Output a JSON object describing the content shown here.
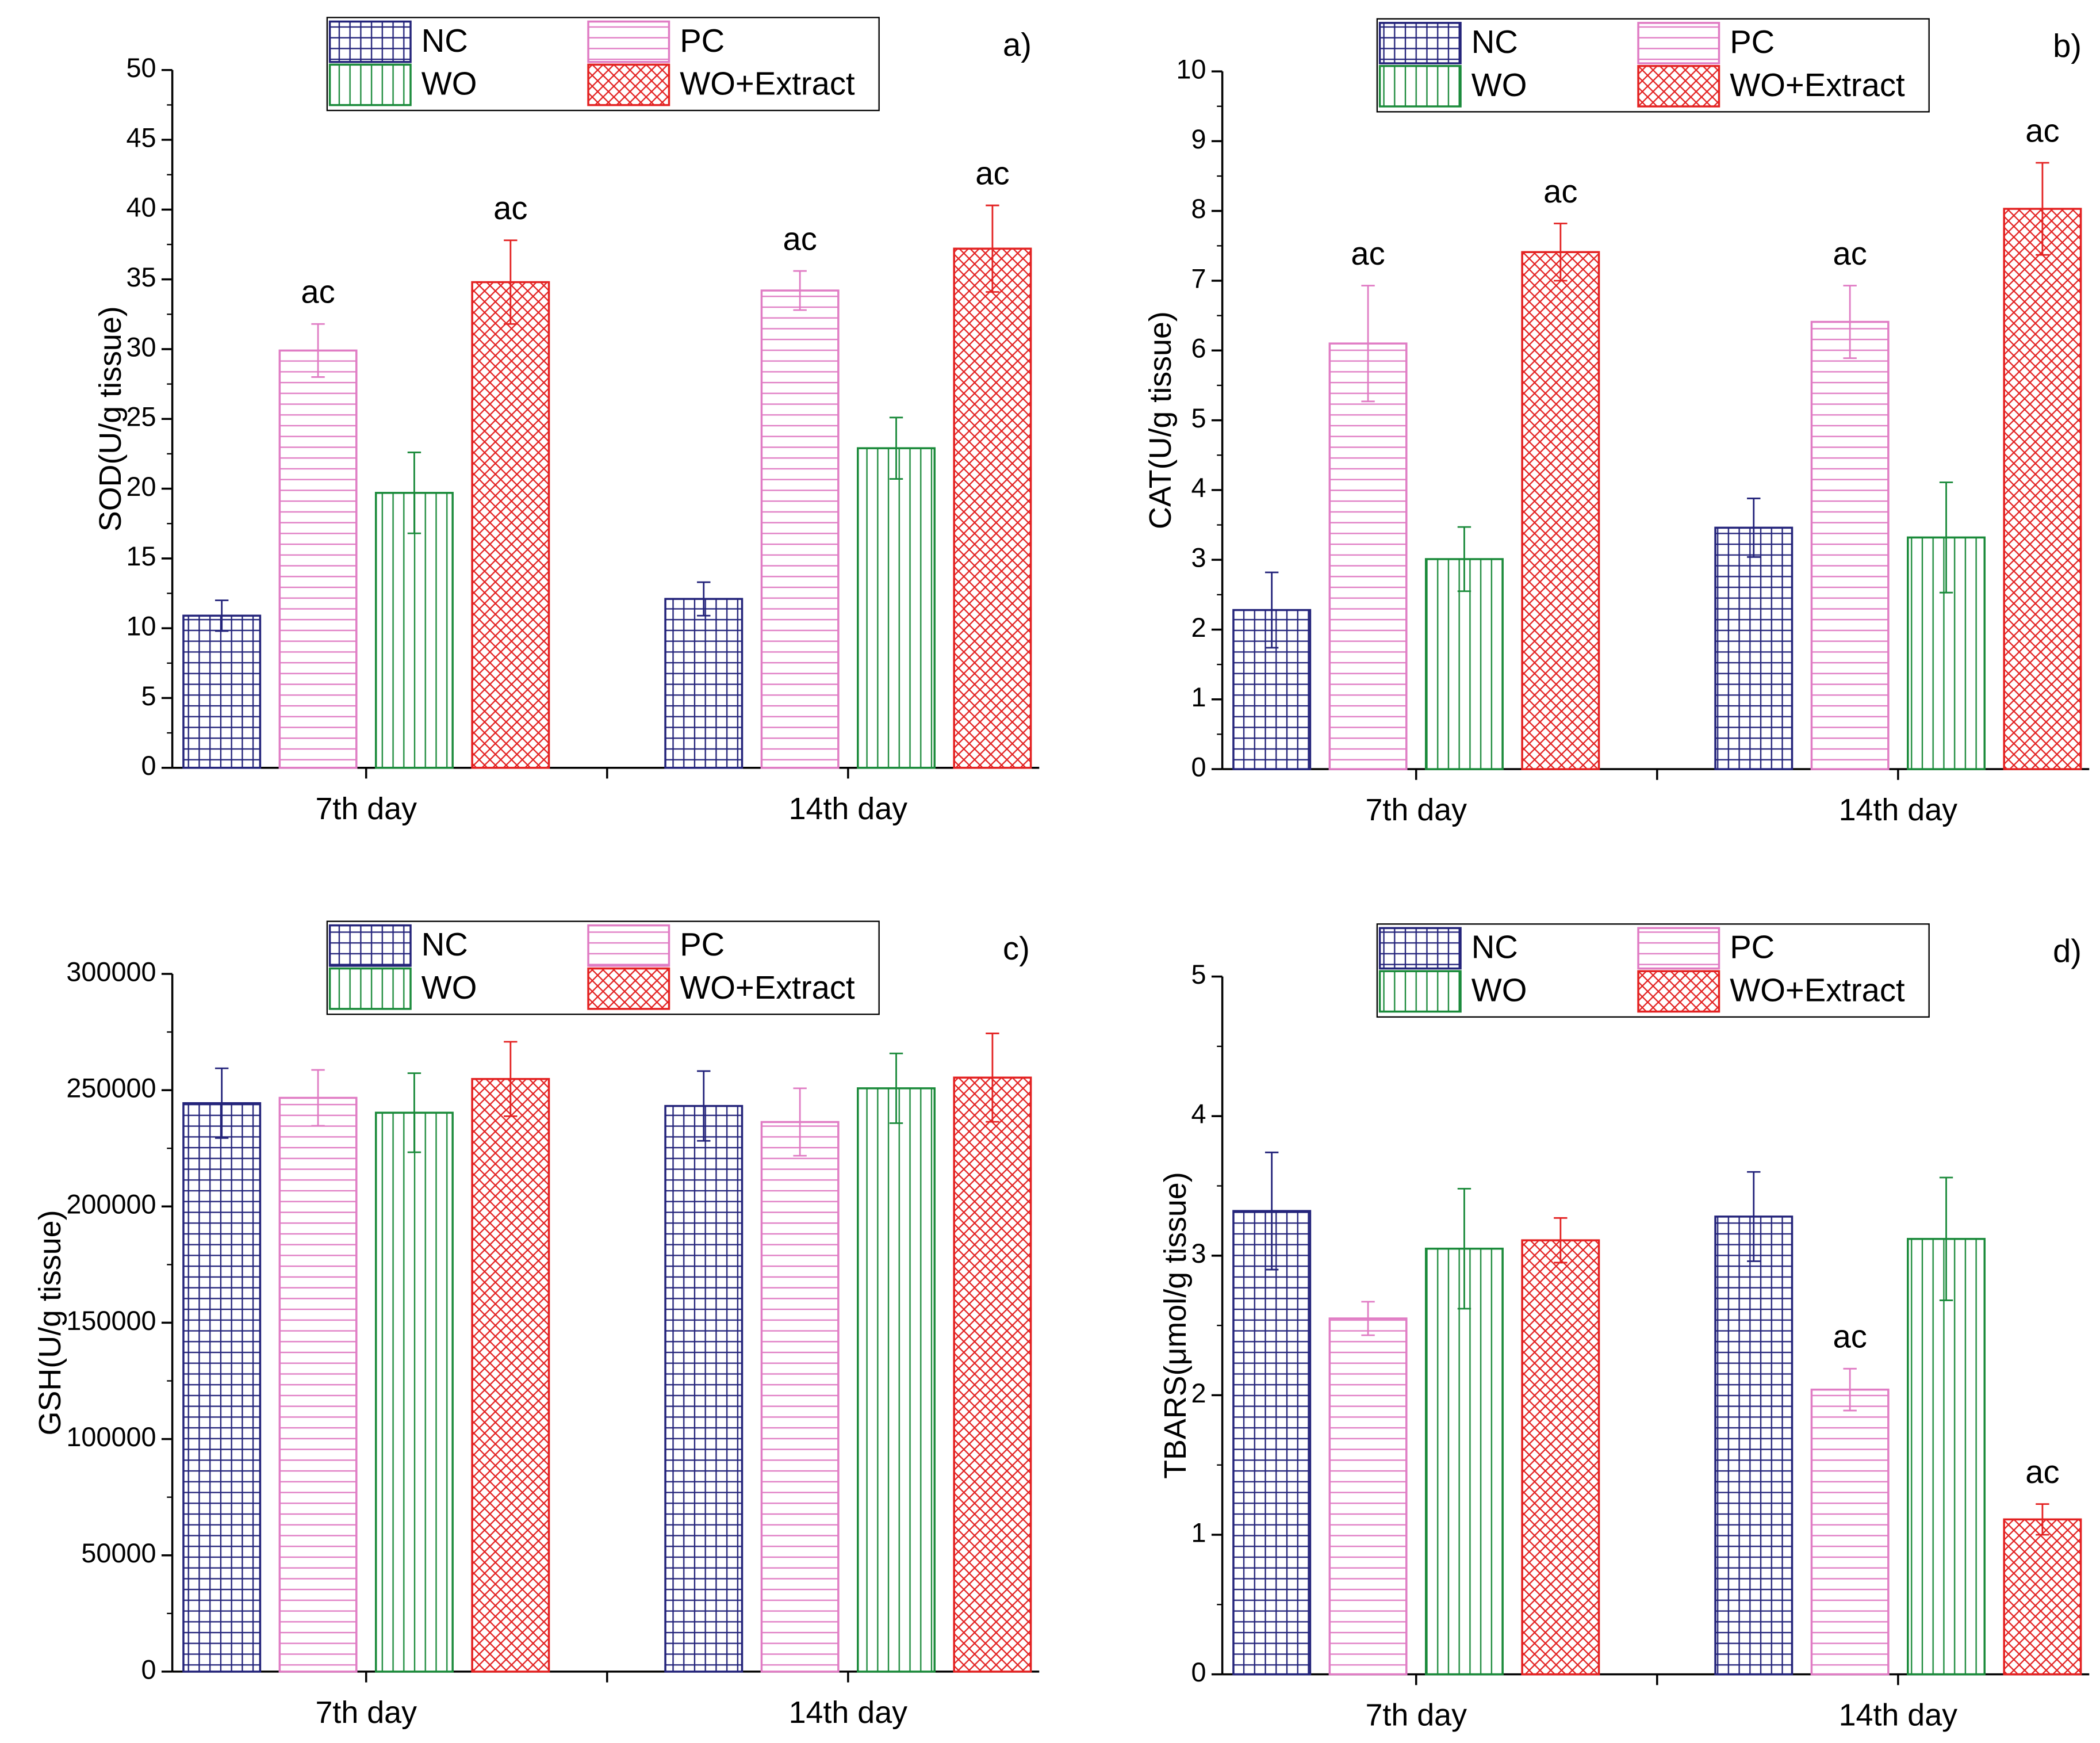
{
  "chart_data": [
    {
      "type": "bar",
      "panel": "a)",
      "ylabel": "SOD(U/g tissue)",
      "categories": [
        "7th day",
        "14th day"
      ],
      "ylim": [
        0,
        50
      ],
      "yticks": [
        0,
        5,
        10,
        15,
        20,
        25,
        30,
        35,
        40,
        45,
        50
      ],
      "series": [
        {
          "name": "NC",
          "color": "#23237a",
          "pattern": "grid",
          "values": [
            10.9,
            12.1
          ],
          "errors": [
            1.1,
            1.2
          ],
          "annotations": [
            null,
            null
          ]
        },
        {
          "name": "PC",
          "color": "#e07cc4",
          "pattern": "horizontal",
          "values": [
            29.9,
            34.2
          ],
          "errors": [
            1.9,
            1.4
          ],
          "annotations": [
            "ac",
            "ac"
          ]
        },
        {
          "name": "WO",
          "color": "#1a8a3a",
          "pattern": "vertical",
          "values": [
            19.7,
            22.9
          ],
          "errors": [
            2.9,
            2.2
          ],
          "annotations": [
            null,
            null
          ]
        },
        {
          "name": "WO+Extract",
          "color": "#e32222",
          "pattern": "crosshatch",
          "values": [
            34.8,
            37.2
          ],
          "errors": [
            3.0,
            3.1
          ],
          "annotations": [
            "ac",
            "ac"
          ]
        }
      ]
    },
    {
      "type": "bar",
      "panel": "b)",
      "ylabel": "CAT(U/g tissue)",
      "categories": [
        "7th day",
        "14th day"
      ],
      "ylim": [
        0,
        10
      ],
      "yticks": [
        0,
        1,
        2,
        3,
        4,
        5,
        6,
        7,
        8,
        9,
        10
      ],
      "series": [
        {
          "name": "NC",
          "color": "#23237a",
          "pattern": "grid",
          "values": [
            2.28,
            3.46
          ],
          "errors": [
            0.54,
            0.42
          ],
          "annotations": [
            null,
            null
          ]
        },
        {
          "name": "PC",
          "color": "#e07cc4",
          "pattern": "horizontal",
          "values": [
            6.1,
            6.41
          ],
          "errors": [
            0.83,
            0.52
          ],
          "annotations": [
            "ac",
            "ac"
          ]
        },
        {
          "name": "WO",
          "color": "#1a8a3a",
          "pattern": "vertical",
          "values": [
            3.01,
            3.32
          ],
          "errors": [
            0.46,
            0.79
          ],
          "annotations": [
            null,
            null
          ]
        },
        {
          "name": "WO+Extract",
          "color": "#e32222",
          "pattern": "crosshatch",
          "values": [
            7.41,
            8.03
          ],
          "errors": [
            0.41,
            0.66
          ],
          "annotations": [
            "ac",
            "ac"
          ]
        }
      ]
    },
    {
      "type": "bar",
      "panel": "c)",
      "ylabel": "GSH(U/g tissue)",
      "categories": [
        "7th day",
        "14th day"
      ],
      "ylim": [
        0,
        300000
      ],
      "yticks": [
        0,
        50000,
        100000,
        150000,
        200000,
        250000,
        300000
      ],
      "series": [
        {
          "name": "NC",
          "color": "#23237a",
          "pattern": "grid",
          "values": [
            244400,
            243200
          ],
          "errors": [
            15000,
            15000
          ],
          "annotations": [
            null,
            null
          ]
        },
        {
          "name": "PC",
          "color": "#e07cc4",
          "pattern": "horizontal",
          "values": [
            246700,
            236300
          ],
          "errors": [
            12000,
            14500
          ],
          "annotations": [
            null,
            null
          ]
        },
        {
          "name": "WO",
          "color": "#1a8a3a",
          "pattern": "vertical",
          "values": [
            240300,
            250800
          ],
          "errors": [
            17000,
            15000
          ],
          "annotations": [
            null,
            null
          ]
        },
        {
          "name": "WO+Extract",
          "color": "#e32222",
          "pattern": "crosshatch",
          "values": [
            254800,
            255400
          ],
          "errors": [
            16000,
            19000
          ],
          "annotations": [
            null,
            null
          ]
        }
      ]
    },
    {
      "type": "bar",
      "panel": "d)",
      "ylabel": "TBARS(μmol/g tissue)",
      "categories": [
        "7th day",
        "14th day"
      ],
      "ylim": [
        0,
        5
      ],
      "yticks": [
        0,
        1,
        2,
        3,
        4,
        5
      ],
      "series": [
        {
          "name": "NC",
          "color": "#23237a",
          "pattern": "grid",
          "values": [
            3.32,
            3.28
          ],
          "errors": [
            0.42,
            0.32
          ],
          "annotations": [
            null,
            null
          ]
        },
        {
          "name": "PC",
          "color": "#e07cc4",
          "pattern": "horizontal",
          "values": [
            2.55,
            2.04
          ],
          "errors": [
            0.12,
            0.15
          ],
          "annotations": [
            null,
            "ac"
          ]
        },
        {
          "name": "WO",
          "color": "#1a8a3a",
          "pattern": "vertical",
          "values": [
            3.05,
            3.12
          ],
          "errors": [
            0.43,
            0.44
          ],
          "annotations": [
            null,
            null
          ]
        },
        {
          "name": "WO+Extract",
          "color": "#e32222",
          "pattern": "crosshatch",
          "values": [
            3.11,
            1.11
          ],
          "errors": [
            0.16,
            0.11
          ],
          "annotations": [
            null,
            "ac"
          ]
        }
      ]
    }
  ]
}
